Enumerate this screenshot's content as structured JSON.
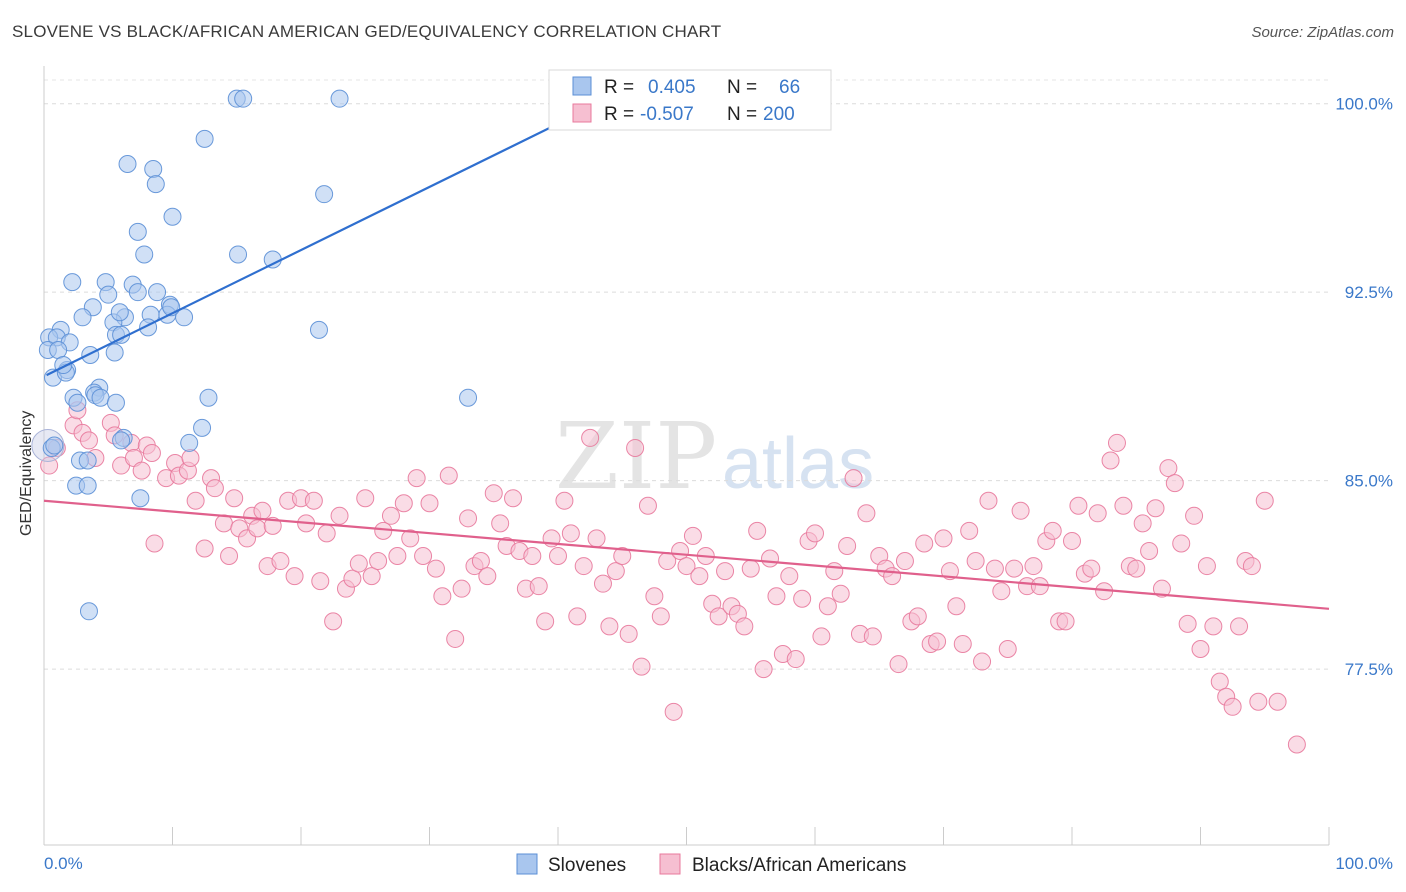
{
  "header": {
    "title": "SLOVENE VS BLACK/AFRICAN AMERICAN GED/EQUIVALENCY CORRELATION CHART",
    "source": "Source: ZipAtlas.com"
  },
  "watermark": {
    "zip": "ZIP",
    "atlas": "atlas"
  },
  "legend_box": {
    "rows": [
      {
        "r_label": "R =",
        "r_value": "0.405",
        "n_label": "N =",
        "n_value": "66",
        "color": "#5b8fd6"
      },
      {
        "r_label": "R =",
        "r_value": "-0.507",
        "n_label": "N =",
        "n_value": "200",
        "color": "#e8799c"
      }
    ]
  },
  "chart_data": {
    "type": "scatter",
    "title": "SLOVENE VS BLACK/AFRICAN AMERICAN GED/EQUIVALENCY CORRELATION CHART",
    "xlabel": "",
    "ylabel": "GED/Equivalency",
    "xlim": [
      0,
      100
    ],
    "ylim": [
      70.5,
      101.5
    ],
    "x_tick_labels": [
      "0.0%",
      "100.0%"
    ],
    "y_ticks": [
      77.5,
      85.0,
      92.5,
      100.0
    ],
    "y_tick_labels": [
      "77.5%",
      "85.0%",
      "92.5%",
      "100.0%"
    ],
    "grid": true,
    "legend_position": "bottom",
    "series": [
      {
        "name": "Slovenes",
        "color": "#5b8fd6",
        "fill": "#a9c6ee",
        "trend": {
          "x": [
            0.2,
            40.0
          ],
          "y": [
            89.2,
            99.2
          ]
        },
        "points": [
          [
            15.0,
            100.2
          ],
          [
            15.5,
            100.2
          ],
          [
            23.0,
            100.2
          ],
          [
            12.5,
            98.6
          ],
          [
            6.5,
            97.6
          ],
          [
            8.5,
            97.4
          ],
          [
            8.7,
            96.8
          ],
          [
            21.8,
            96.4
          ],
          [
            10.0,
            95.5
          ],
          [
            7.3,
            94.9
          ],
          [
            7.8,
            94.0
          ],
          [
            15.1,
            94.0
          ],
          [
            17.8,
            93.8
          ],
          [
            2.2,
            92.9
          ],
          [
            4.8,
            92.9
          ],
          [
            6.9,
            92.8
          ],
          [
            5.0,
            92.4
          ],
          [
            7.3,
            92.5
          ],
          [
            8.8,
            92.5
          ],
          [
            9.8,
            92.0
          ],
          [
            3.8,
            91.9
          ],
          [
            3.0,
            91.5
          ],
          [
            6.3,
            91.5
          ],
          [
            8.3,
            91.6
          ],
          [
            9.6,
            91.6
          ],
          [
            10.9,
            91.5
          ],
          [
            5.4,
            91.3
          ],
          [
            1.3,
            91.0
          ],
          [
            8.1,
            91.1
          ],
          [
            21.4,
            91.0
          ],
          [
            0.4,
            90.7
          ],
          [
            1.0,
            90.7
          ],
          [
            5.6,
            90.8
          ],
          [
            2.0,
            90.5
          ],
          [
            6.0,
            90.8
          ],
          [
            0.3,
            90.2
          ],
          [
            1.1,
            90.2
          ],
          [
            5.5,
            90.1
          ],
          [
            3.6,
            90.0
          ],
          [
            0.7,
            89.1
          ],
          [
            1.8,
            89.4
          ],
          [
            1.7,
            89.3
          ],
          [
            4.3,
            88.7
          ],
          [
            3.9,
            88.5
          ],
          [
            4.0,
            88.4
          ],
          [
            2.3,
            88.3
          ],
          [
            4.4,
            88.3
          ],
          [
            12.8,
            88.3
          ],
          [
            33.0,
            88.3
          ],
          [
            5.6,
            88.1
          ],
          [
            2.6,
            88.1
          ],
          [
            12.3,
            87.1
          ],
          [
            6.2,
            86.7
          ],
          [
            6.0,
            86.6
          ],
          [
            11.3,
            86.5
          ],
          [
            0.6,
            86.3
          ],
          [
            2.8,
            85.8
          ],
          [
            3.4,
            85.8
          ],
          [
            2.5,
            84.8
          ],
          [
            3.4,
            84.8
          ],
          [
            7.5,
            84.3
          ],
          [
            3.5,
            79.8
          ],
          [
            0.8,
            86.4
          ],
          [
            1.5,
            89.6
          ],
          [
            5.9,
            91.7
          ],
          [
            9.9,
            91.9
          ]
        ]
      },
      {
        "name": "Blacks/African Americans",
        "color": "#e8799c",
        "fill": "#f6bfd1",
        "trend": {
          "x": [
            0.0,
            100.0
          ],
          "y": [
            84.2,
            79.9
          ]
        },
        "points": [
          [
            0.4,
            85.6
          ],
          [
            1.0,
            86.3
          ],
          [
            2.3,
            87.2
          ],
          [
            2.6,
            87.8
          ],
          [
            3.0,
            86.9
          ],
          [
            3.5,
            86.6
          ],
          [
            4.0,
            85.9
          ],
          [
            5.2,
            87.3
          ],
          [
            5.5,
            86.8
          ],
          [
            6.0,
            85.6
          ],
          [
            6.8,
            86.5
          ],
          [
            7.0,
            85.9
          ],
          [
            7.6,
            85.4
          ],
          [
            8.0,
            86.4
          ],
          [
            8.4,
            86.1
          ],
          [
            8.6,
            82.5
          ],
          [
            9.5,
            85.1
          ],
          [
            10.2,
            85.7
          ],
          [
            10.5,
            85.2
          ],
          [
            11.2,
            85.4
          ],
          [
            11.4,
            85.9
          ],
          [
            11.8,
            84.2
          ],
          [
            12.5,
            82.3
          ],
          [
            13.0,
            85.1
          ],
          [
            13.3,
            84.7
          ],
          [
            14.0,
            83.3
          ],
          [
            14.4,
            82.0
          ],
          [
            14.8,
            84.3
          ],
          [
            15.2,
            83.1
          ],
          [
            15.8,
            82.7
          ],
          [
            16.2,
            83.6
          ],
          [
            16.6,
            83.1
          ],
          [
            17.0,
            83.8
          ],
          [
            17.4,
            81.6
          ],
          [
            17.8,
            83.2
          ],
          [
            18.4,
            81.8
          ],
          [
            19.0,
            84.2
          ],
          [
            19.5,
            81.2
          ],
          [
            20.0,
            84.3
          ],
          [
            20.4,
            83.3
          ],
          [
            21.0,
            84.2
          ],
          [
            21.5,
            81.0
          ],
          [
            22.0,
            82.9
          ],
          [
            22.5,
            79.4
          ],
          [
            23.0,
            83.6
          ],
          [
            23.5,
            80.7
          ],
          [
            24.0,
            81.1
          ],
          [
            24.5,
            81.7
          ],
          [
            25.0,
            84.3
          ],
          [
            25.5,
            81.2
          ],
          [
            26.0,
            81.8
          ],
          [
            26.4,
            83.0
          ],
          [
            27.0,
            83.6
          ],
          [
            27.5,
            82.0
          ],
          [
            28.0,
            84.1
          ],
          [
            28.5,
            82.7
          ],
          [
            29.0,
            85.1
          ],
          [
            29.5,
            82.0
          ],
          [
            30.0,
            84.1
          ],
          [
            30.5,
            81.5
          ],
          [
            31.0,
            80.4
          ],
          [
            31.5,
            85.2
          ],
          [
            32.0,
            78.7
          ],
          [
            32.5,
            80.7
          ],
          [
            33.0,
            83.5
          ],
          [
            33.5,
            81.6
          ],
          [
            34.0,
            81.8
          ],
          [
            34.5,
            81.2
          ],
          [
            35.0,
            84.5
          ],
          [
            35.5,
            83.3
          ],
          [
            36.0,
            82.4
          ],
          [
            36.5,
            84.3
          ],
          [
            37.0,
            82.2
          ],
          [
            37.5,
            80.7
          ],
          [
            38.0,
            82.0
          ],
          [
            38.5,
            80.8
          ],
          [
            39.0,
            79.4
          ],
          [
            39.5,
            82.7
          ],
          [
            40.0,
            82.0
          ],
          [
            40.5,
            84.2
          ],
          [
            41.0,
            82.9
          ],
          [
            41.5,
            79.6
          ],
          [
            42.0,
            81.6
          ],
          [
            42.5,
            86.7
          ],
          [
            43.0,
            82.7
          ],
          [
            43.5,
            80.9
          ],
          [
            44.0,
            79.2
          ],
          [
            44.5,
            81.4
          ],
          [
            45.0,
            82.0
          ],
          [
            45.5,
            78.9
          ],
          [
            46.0,
            86.3
          ],
          [
            46.5,
            77.6
          ],
          [
            47.0,
            84.0
          ],
          [
            47.5,
            80.4
          ],
          [
            48.0,
            79.6
          ],
          [
            48.5,
            81.8
          ],
          [
            49.0,
            75.8
          ],
          [
            49.5,
            82.2
          ],
          [
            50.0,
            81.6
          ],
          [
            50.5,
            82.8
          ],
          [
            51.0,
            81.2
          ],
          [
            51.5,
            82.0
          ],
          [
            52.0,
            80.1
          ],
          [
            52.5,
            79.6
          ],
          [
            53.0,
            81.4
          ],
          [
            53.5,
            80.0
          ],
          [
            54.0,
            79.7
          ],
          [
            54.5,
            79.2
          ],
          [
            55.0,
            81.5
          ],
          [
            55.5,
            83.0
          ],
          [
            56.0,
            77.5
          ],
          [
            56.5,
            81.9
          ],
          [
            57.0,
            80.4
          ],
          [
            57.5,
            78.1
          ],
          [
            58.0,
            81.2
          ],
          [
            58.5,
            77.9
          ],
          [
            59.0,
            80.3
          ],
          [
            59.5,
            82.6
          ],
          [
            60.0,
            82.9
          ],
          [
            60.5,
            78.8
          ],
          [
            61.0,
            80.0
          ],
          [
            61.5,
            81.4
          ],
          [
            62.0,
            80.5
          ],
          [
            62.5,
            82.4
          ],
          [
            63.0,
            85.1
          ],
          [
            63.5,
            78.9
          ],
          [
            64.0,
            83.7
          ],
          [
            64.5,
            78.8
          ],
          [
            65.0,
            82.0
          ],
          [
            65.5,
            81.5
          ],
          [
            66.0,
            81.2
          ],
          [
            66.5,
            77.7
          ],
          [
            67.0,
            81.8
          ],
          [
            67.5,
            79.4
          ],
          [
            68.0,
            79.6
          ],
          [
            68.5,
            82.5
          ],
          [
            69.0,
            78.5
          ],
          [
            69.5,
            78.6
          ],
          [
            70.0,
            82.7
          ],
          [
            70.5,
            81.4
          ],
          [
            71.0,
            80.0
          ],
          [
            71.5,
            78.5
          ],
          [
            72.0,
            83.0
          ],
          [
            72.5,
            81.8
          ],
          [
            73.0,
            77.8
          ],
          [
            73.5,
            84.2
          ],
          [
            74.0,
            81.5
          ],
          [
            74.5,
            80.6
          ],
          [
            75.0,
            78.3
          ],
          [
            75.5,
            81.5
          ],
          [
            76.0,
            83.8
          ],
          [
            76.5,
            80.8
          ],
          [
            77.0,
            81.6
          ],
          [
            77.5,
            80.8
          ],
          [
            78.0,
            82.6
          ],
          [
            78.5,
            83.0
          ],
          [
            79.0,
            79.4
          ],
          [
            79.5,
            79.4
          ],
          [
            80.0,
            82.6
          ],
          [
            80.5,
            84.0
          ],
          [
            81.0,
            81.3
          ],
          [
            81.5,
            81.5
          ],
          [
            82.0,
            83.7
          ],
          [
            82.5,
            80.6
          ],
          [
            83.0,
            85.8
          ],
          [
            83.5,
            86.5
          ],
          [
            84.0,
            84.0
          ],
          [
            84.5,
            81.6
          ],
          [
            85.0,
            81.5
          ],
          [
            85.5,
            83.3
          ],
          [
            86.0,
            82.2
          ],
          [
            86.5,
            83.9
          ],
          [
            87.0,
            80.7
          ],
          [
            87.5,
            85.5
          ],
          [
            88.0,
            84.9
          ],
          [
            88.5,
            82.5
          ],
          [
            89.0,
            79.3
          ],
          [
            89.5,
            83.6
          ],
          [
            90.0,
            78.3
          ],
          [
            90.5,
            81.6
          ],
          [
            91.0,
            79.2
          ],
          [
            91.5,
            77.0
          ],
          [
            92.0,
            76.4
          ],
          [
            92.5,
            76.0
          ],
          [
            93.0,
            79.2
          ],
          [
            93.5,
            81.8
          ],
          [
            94.0,
            81.6
          ],
          [
            95.0,
            84.2
          ],
          [
            94.5,
            76.2
          ],
          [
            96.0,
            76.2
          ],
          [
            97.5,
            74.5
          ]
        ]
      }
    ]
  }
}
